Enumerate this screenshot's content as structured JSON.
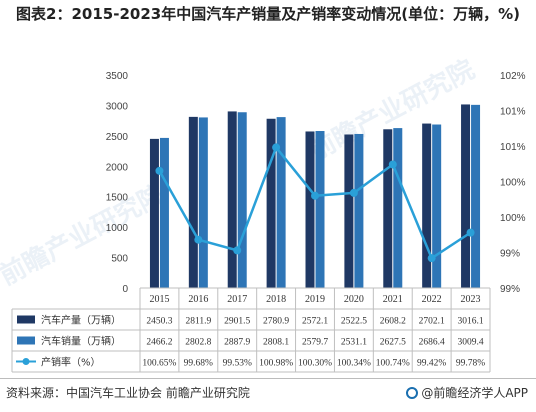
{
  "title": "图表2：2015-2023年中国汽车产销量及产销率变动情况(单位：万辆，%)",
  "source": "资料来源：中国汽车工业协会 前瞻产业研究院",
  "brand": "@前瞻经济学人APP",
  "watermark": "前瞻产业研究院",
  "colors": {
    "production": "#1f3864",
    "sales": "#2e75b6",
    "rate": "#2aa0d8"
  },
  "chart_data": {
    "type": "bar+line",
    "categories": [
      "2015",
      "2016",
      "2017",
      "2018",
      "2019",
      "2020",
      "2021",
      "2022",
      "2023"
    ],
    "series": [
      {
        "name": "汽车产量（万辆）",
        "type": "bar",
        "axis": "left",
        "values": [
          2450.3,
          2811.9,
          2901.5,
          2780.9,
          2572.1,
          2522.5,
          2608.2,
          2702.1,
          3016.1
        ],
        "labels": [
          "2450.3",
          "2811.9",
          "2901.5",
          "2780.9",
          "2572.1",
          "2522.5",
          "2608.2",
          "2702.1",
          "3016.1"
        ]
      },
      {
        "name": "汽车销量（万辆）",
        "type": "bar",
        "axis": "left",
        "values": [
          2466.2,
          2802.8,
          2887.9,
          2808.1,
          2579.7,
          2531.1,
          2627.5,
          2686.4,
          3009.4
        ],
        "labels": [
          "2466.2",
          "2802.8",
          "2887.9",
          "2808.1",
          "2579.7",
          "2531.1",
          "2627.5",
          "2686.4",
          "3009.4"
        ]
      },
      {
        "name": "产销率（%）",
        "type": "line",
        "axis": "right",
        "values": [
          100.65,
          99.68,
          99.53,
          100.98,
          100.3,
          100.34,
          100.74,
          99.42,
          99.78
        ],
        "labels": [
          "100.65%",
          "99.68%",
          "99.53%",
          "100.98%",
          "100.30%",
          "100.34%",
          "100.74%",
          "99.42%",
          "99.78%"
        ]
      }
    ],
    "y_left": {
      "min": 0,
      "max": 3500,
      "ticks": [
        "0",
        "500",
        "1000",
        "1500",
        "2000",
        "2500",
        "3000",
        "3500"
      ]
    },
    "y_right": {
      "min": 99,
      "max": 102,
      "ticks": [
        "99%",
        "99%",
        "100%",
        "100%",
        "101%",
        "101%",
        "102%"
      ]
    },
    "legend": "data-table below chart",
    "grid": false
  }
}
